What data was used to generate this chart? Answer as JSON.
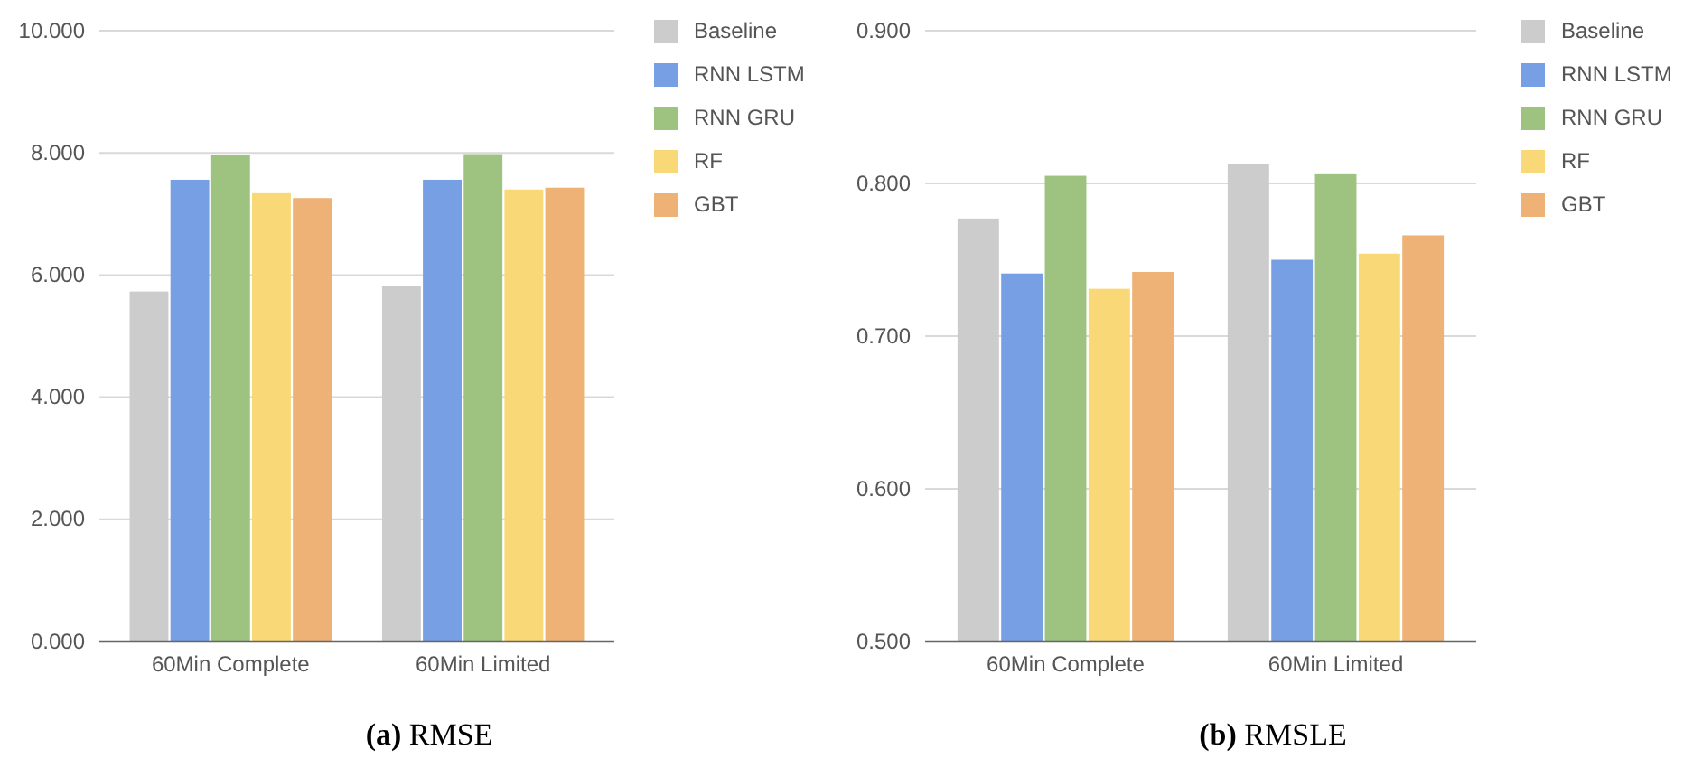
{
  "chart_data": [
    {
      "type": "bar",
      "title": "(a) RMSE",
      "categories": [
        "60Min Complete",
        "60Min Limited"
      ],
      "series": [
        {
          "name": "Baseline",
          "color": "#cccccc",
          "values": [
            5.73,
            5.82
          ]
        },
        {
          "name": "RNN LSTM",
          "color": "#779fe3",
          "values": [
            7.56,
            7.56
          ]
        },
        {
          "name": "RNN GRU",
          "color": "#9ec380",
          "values": [
            7.96,
            7.98
          ]
        },
        {
          "name": "RF",
          "color": "#f9d878",
          "values": [
            7.34,
            7.4
          ]
        },
        {
          "name": "GBT",
          "color": "#eeb276",
          "values": [
            7.26,
            7.43
          ]
        }
      ],
      "ylim": [
        0,
        10
      ],
      "yticks": [
        {
          "value": 0,
          "label": "0.000"
        },
        {
          "value": 2,
          "label": "2.000"
        },
        {
          "value": 4,
          "label": "4.000"
        },
        {
          "value": 6,
          "label": "6.000"
        },
        {
          "value": 8,
          "label": "8.000"
        },
        {
          "value": 10,
          "label": "10.000"
        }
      ],
      "grid": "y",
      "legend": "top right"
    },
    {
      "type": "bar",
      "title": "(b) RMSLE",
      "categories": [
        "60Min Complete",
        "60Min Limited"
      ],
      "series": [
        {
          "name": "Baseline",
          "color": "#cccccc",
          "values": [
            0.777,
            0.813
          ]
        },
        {
          "name": "RNN LSTM",
          "color": "#779fe3",
          "values": [
            0.741,
            0.75
          ]
        },
        {
          "name": "RNN GRU",
          "color": "#9ec380",
          "values": [
            0.805,
            0.806
          ]
        },
        {
          "name": "RF",
          "color": "#f9d878",
          "values": [
            0.731,
            0.754
          ]
        },
        {
          "name": "GBT",
          "color": "#eeb276",
          "values": [
            0.742,
            0.766
          ]
        }
      ],
      "ylim": [
        0.5,
        0.9
      ],
      "yticks": [
        {
          "value": 0.5,
          "label": "0.500"
        },
        {
          "value": 0.6,
          "label": "0.600"
        },
        {
          "value": 0.7,
          "label": "0.700"
        },
        {
          "value": 0.8,
          "label": "0.800"
        },
        {
          "value": 0.9,
          "label": "0.900"
        }
      ],
      "grid": "y",
      "legend": "top right"
    }
  ]
}
